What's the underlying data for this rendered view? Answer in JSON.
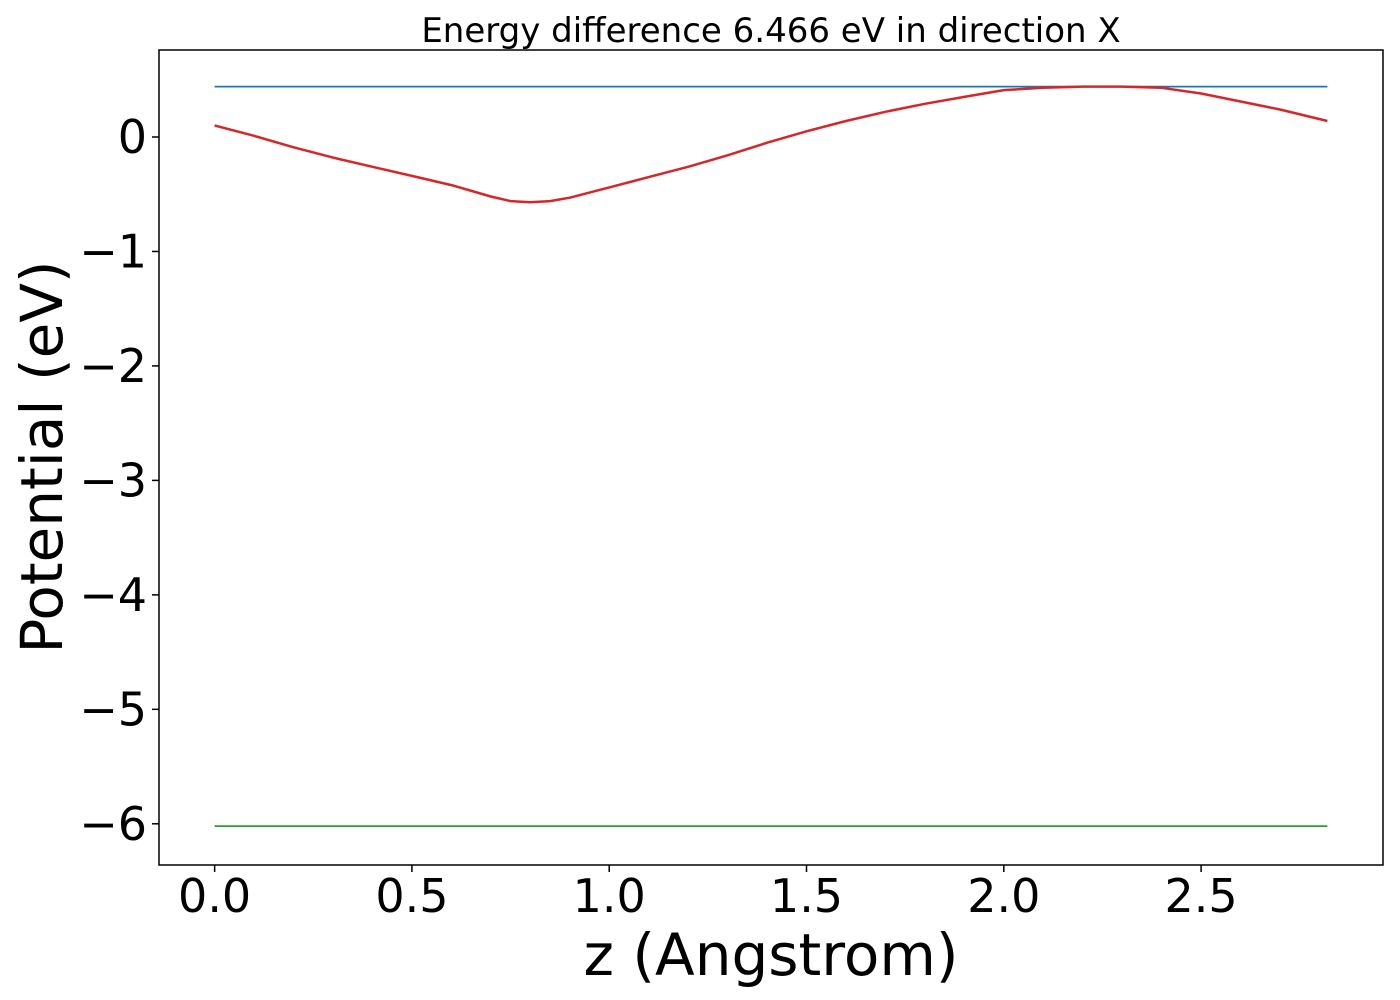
{
  "chart_data": {
    "type": "line",
    "title": "Energy difference 6.466 eV in direction X",
    "xlabel": "z (Angstrom)",
    "ylabel": "Potential (eV)",
    "xlim": [
      -0.141,
      2.961
    ],
    "ylim": [
      -6.36,
      0.76
    ],
    "xticks": [
      0.0,
      0.5,
      1.0,
      1.5,
      2.0,
      2.5
    ],
    "xtick_labels": [
      "0.0",
      "0.5",
      "1.0",
      "1.5",
      "2.0",
      "2.5"
    ],
    "yticks": [
      0,
      -1,
      -2,
      -3,
      -4,
      -5,
      -6
    ],
    "ytick_labels": [
      "0",
      "−1",
      "−2",
      "−3",
      "−4",
      "−5",
      "−6"
    ],
    "grid": false,
    "legend": "none",
    "series": [
      {
        "color": "#1f77b4",
        "x": [
          0.0,
          2.82
        ],
        "y": [
          0.44,
          0.44
        ]
      },
      {
        "color": "#d62728",
        "x": [
          0.0,
          0.1,
          0.2,
          0.3,
          0.4,
          0.5,
          0.6,
          0.7,
          0.75,
          0.8,
          0.85,
          0.9,
          1.0,
          1.1,
          1.2,
          1.3,
          1.4,
          1.5,
          1.6,
          1.7,
          1.8,
          1.9,
          2.0,
          2.1,
          2.2,
          2.3,
          2.4,
          2.5,
          2.6,
          2.7,
          2.82
        ],
        "y": [
          0.1,
          0.01,
          -0.09,
          -0.18,
          -0.26,
          -0.34,
          -0.42,
          -0.52,
          -0.56,
          -0.57,
          -0.56,
          -0.53,
          -0.44,
          -0.35,
          -0.26,
          -0.16,
          -0.05,
          0.05,
          0.14,
          0.22,
          0.29,
          0.35,
          0.41,
          0.43,
          0.44,
          0.44,
          0.43,
          0.38,
          0.31,
          0.24,
          0.14
        ]
      },
      {
        "color": "#2ca02c",
        "x": [
          0.0,
          2.82
        ],
        "y": [
          -6.02,
          -6.02
        ]
      }
    ]
  }
}
